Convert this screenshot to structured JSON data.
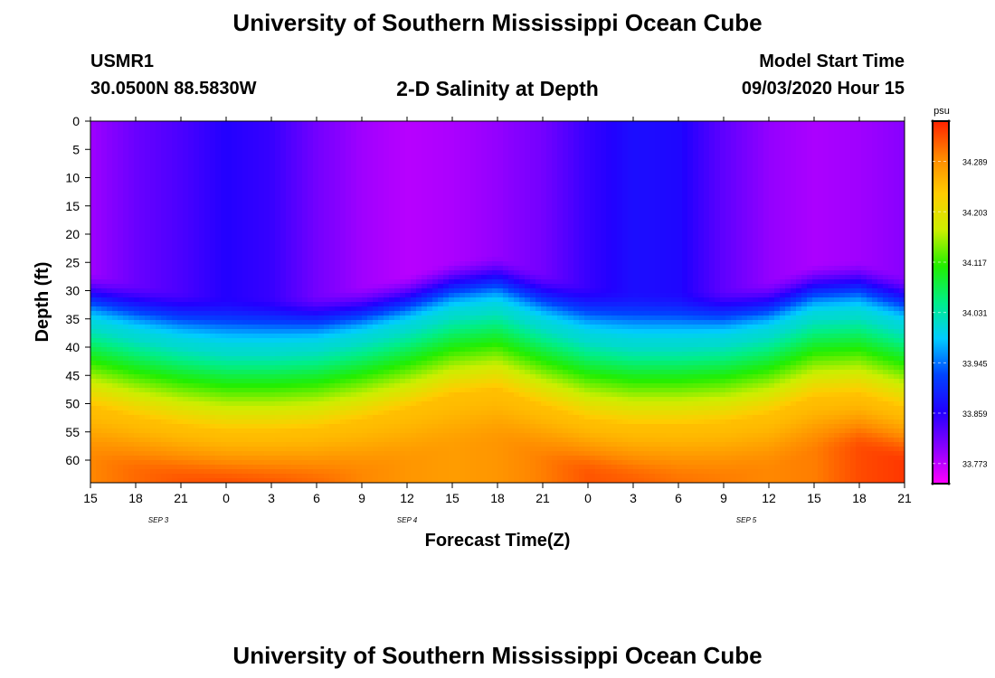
{
  "page": {
    "title": "University of Southern Mississippi Ocean Cube",
    "footer_title": "University of Southern Mississippi Ocean Cube"
  },
  "header": {
    "station": "USMR1",
    "coords": "30.0500N 88.5830W",
    "plot_title": "2-D Salinity at Depth",
    "model_label": "Model Start Time",
    "model_time": "09/03/2020 Hour 15"
  },
  "chart_data": {
    "type": "heatmap",
    "title": "2-D Salinity at Depth",
    "xlabel": "Forecast Time(Z)",
    "ylabel": "Depth (ft)",
    "x_ticks": [
      "15",
      "18",
      "21",
      "0",
      "3",
      "6",
      "9",
      "12",
      "15",
      "18",
      "21",
      "0",
      "3",
      "6",
      "9",
      "12",
      "15",
      "18",
      "21"
    ],
    "date_labels": [
      {
        "label": "SEP 3",
        "tick_index": 1.5
      },
      {
        "label": "SEP 4",
        "tick_index": 7
      },
      {
        "label": "SEP 5",
        "tick_index": 14.5
      }
    ],
    "y_ticks": [
      0,
      5,
      10,
      15,
      20,
      25,
      30,
      35,
      40,
      45,
      50,
      55,
      60
    ],
    "ylim": [
      0,
      64
    ],
    "colorbar": {
      "unit": "psu",
      "ticks": [
        "34.289",
        "34.203",
        "34.117",
        "34.031",
        "33.945",
        "33.859",
        "33.773"
      ],
      "colors": [
        "#ff00ff",
        "#8800ff",
        "#2200ff",
        "#0044ff",
        "#00ccff",
        "#00ee88",
        "#22ee00",
        "#ccee00",
        "#ffcc00",
        "#ff8800",
        "#ff2200"
      ]
    },
    "interface_depth_ft": [
      36.5,
      38.5,
      40,
      41,
      41,
      40.5,
      39,
      37,
      34.5,
      33.5,
      36.5,
      39,
      40,
      40,
      39.5,
      38,
      35,
      34.5,
      37
    ],
    "upper_salinity_level": [
      0.08,
      0.13,
      0.16,
      0.2,
      0.18,
      0.12,
      0.08,
      0.06,
      0.07,
      0.09,
      0.12,
      0.18,
      0.22,
      0.21,
      0.14,
      0.09,
      0.07,
      0.08,
      0.1
    ],
    "deep_salinity_level": [
      0.9,
      0.93,
      0.95,
      0.96,
      0.95,
      0.93,
      0.9,
      0.88,
      0.87,
      0.88,
      0.91,
      0.95,
      0.94,
      0.92,
      0.91,
      0.9,
      0.91,
      0.96,
      0.98
    ]
  }
}
